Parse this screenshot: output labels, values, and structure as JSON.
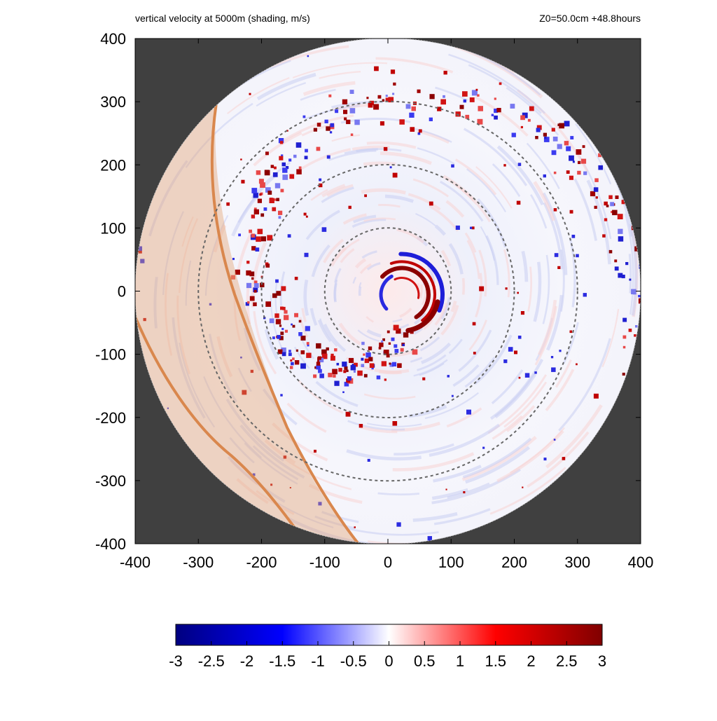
{
  "chart_data": {
    "type": "heatmap",
    "title": "vertical velocity at 5000m (shading, m/s)",
    "subtitle": "Z0=50.0cm  +48.8hours",
    "xlim": [
      -400,
      400
    ],
    "ylim": [
      -400,
      400
    ],
    "xticks": [
      "-400",
      "-300",
      "-200",
      "-100",
      "0",
      "100",
      "200",
      "300",
      "400"
    ],
    "yticks": [
      "400",
      "300",
      "200",
      "100",
      "0",
      "-100",
      "-200",
      "-300",
      "-400"
    ],
    "domain_radius": 400,
    "range_rings": [
      100,
      200,
      300
    ],
    "colorbar": {
      "min": -3,
      "max": 3,
      "ticks": [
        "-3",
        "-2.5",
        "-2",
        "-1.5",
        "-1",
        "-0.5",
        "0",
        "0.5",
        "1",
        "1.5",
        "2",
        "2.5",
        "3"
      ],
      "colors": [
        "#000080",
        "#0000ff",
        "#ffffff",
        "#ff0000",
        "#800000"
      ]
    },
    "colors": {
      "background": "#404040",
      "land_band": "#e3a173",
      "coastline": "#d9874d",
      "ring": "#666666"
    }
  }
}
